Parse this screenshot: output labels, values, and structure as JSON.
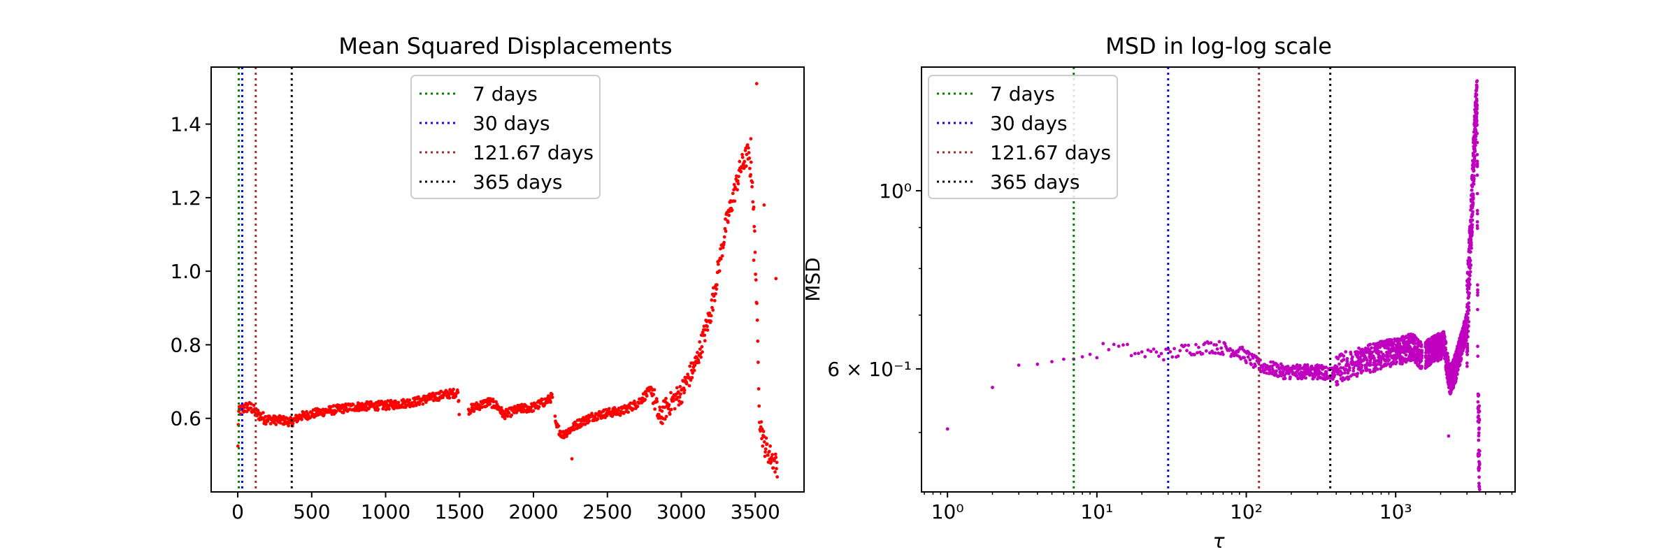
{
  "chart_data": [
    {
      "type": "scatter",
      "title": "Mean Squared Displacements",
      "xlabel": "",
      "ylabel": "",
      "xlim": [
        -180,
        3830
      ],
      "ylim": [
        0.4,
        1.555
      ],
      "x_ticks": [
        0,
        500,
        1000,
        1500,
        2000,
        2500,
        3000,
        3500
      ],
      "x_tick_labels": [
        "0",
        "500",
        "1000",
        "1500",
        "2000",
        "2500",
        "3000",
        "3500"
      ],
      "y_ticks": [
        0.6,
        0.8,
        1.0,
        1.2,
        1.4
      ],
      "y_tick_labels": [
        "0.6",
        "0.8",
        "1.0",
        "1.2",
        "1.4"
      ],
      "grid": false,
      "legend_position": "top-center",
      "series": [
        {
          "color": "#ff0000",
          "marker": "dot",
          "profile": [
            [
              1,
              0.52
            ],
            [
              3,
              0.58
            ],
            [
              7,
              0.615
            ],
            [
              15,
              0.62
            ],
            [
              30,
              0.625
            ],
            [
              60,
              0.63
            ],
            [
              90,
              0.63
            ],
            [
              122,
              0.615
            ],
            [
              180,
              0.6
            ],
            [
              250,
              0.595
            ],
            [
              300,
              0.595
            ],
            [
              365,
              0.59
            ],
            [
              420,
              0.605
            ],
            [
              600,
              0.62
            ],
            [
              800,
              0.632
            ],
            [
              1000,
              0.635
            ],
            [
              1200,
              0.645
            ],
            [
              1300,
              0.655
            ],
            [
              1400,
              0.665
            ],
            [
              1490,
              0.67
            ],
            [
              1500,
              0.61
            ],
            [
              1600,
              0.63
            ],
            [
              1700,
              0.645
            ],
            [
              1750,
              0.635
            ],
            [
              1800,
              0.61
            ],
            [
              1900,
              0.625
            ],
            [
              2000,
              0.63
            ],
            [
              2100,
              0.65
            ],
            [
              2130,
              0.66
            ],
            [
              2150,
              0.58
            ],
            [
              2200,
              0.555
            ],
            [
              2300,
              0.585
            ],
            [
              2400,
              0.605
            ],
            [
              2500,
              0.615
            ],
            [
              2600,
              0.62
            ],
            [
              2700,
              0.64
            ],
            [
              2800,
              0.68
            ],
            [
              2850,
              0.6
            ],
            [
              2900,
              0.63
            ],
            [
              3000,
              0.67
            ],
            [
              3100,
              0.75
            ],
            [
              3200,
              0.89
            ],
            [
              3300,
              1.12
            ],
            [
              3400,
              1.28
            ],
            [
              3450,
              1.32
            ],
            [
              3480,
              1.25
            ],
            [
              3500,
              1.05
            ],
            [
              3530,
              0.6
            ],
            [
              3560,
              0.53
            ],
            [
              3600,
              0.5
            ],
            [
              3650,
              0.47
            ]
          ],
          "notable_points": [
            [
              3510,
              1.51
            ],
            [
              3470,
              1.36
            ],
            [
              3560,
              1.18
            ],
            [
              3490,
              1.03
            ],
            [
              3640,
              0.98
            ],
            [
              2260,
              0.49
            ]
          ]
        }
      ],
      "vlines": [
        {
          "x": 7,
          "color": "#008000"
        },
        {
          "x": 30,
          "color": "#0000ff"
        },
        {
          "x": 121.67,
          "color": "#a52a2a"
        },
        {
          "x": 365,
          "color": "#000000"
        }
      ],
      "legend": [
        "7 days",
        "30 days",
        "121.67 days",
        "365 days"
      ]
    },
    {
      "type": "scatter",
      "title": "MSD in log-log scale",
      "xlabel": "τ",
      "ylabel": "MSD",
      "xscale": "log",
      "yscale": "log",
      "xlim": [
        0.67,
        6300
      ],
      "ylim": [
        0.4217,
        1.4254
      ],
      "x_ticks": [
        1,
        10,
        100,
        1000
      ],
      "x_tick_labels": [
        "10⁰",
        "10¹",
        "10²",
        "10³"
      ],
      "y_ticks": [
        0.6,
        1.0
      ],
      "y_tick_labels": [
        "6 × 10⁻¹",
        "10⁰"
      ],
      "grid": false,
      "legend_position": "top-left",
      "series": [
        {
          "color": "#bf00bf",
          "marker": "dot",
          "profile": [
            [
              1,
              0.505
            ],
            [
              1.5,
              0.57
            ],
            [
              2,
              0.57
            ],
            [
              3,
              0.605
            ],
            [
              4,
              0.61
            ],
            [
              5,
              0.612
            ],
            [
              7,
              0.618
            ],
            [
              9,
              0.625
            ],
            [
              12,
              0.64
            ],
            [
              15,
              0.635
            ],
            [
              20,
              0.625
            ],
            [
              25,
              0.63
            ],
            [
              30,
              0.625
            ],
            [
              40,
              0.635
            ],
            [
              60,
              0.64
            ],
            [
              90,
              0.63
            ],
            [
              122,
              0.605
            ],
            [
              180,
              0.595
            ],
            [
              250,
              0.595
            ],
            [
              300,
              0.595
            ],
            [
              365,
              0.592
            ],
            [
              450,
              0.605
            ],
            [
              600,
              0.615
            ],
            [
              800,
              0.625
            ],
            [
              1000,
              0.63
            ],
            [
              1300,
              0.64
            ],
            [
              1500,
              0.62
            ],
            [
              1800,
              0.635
            ],
            [
              2100,
              0.645
            ],
            [
              2300,
              0.58
            ],
            [
              2500,
              0.6
            ],
            [
              2800,
              0.65
            ],
            [
              3000,
              0.68
            ],
            [
              3200,
              0.9
            ],
            [
              3400,
              1.2
            ],
            [
              3500,
              1.3
            ],
            [
              3550,
              0.55
            ],
            [
              3600,
              0.46
            ]
          ],
          "notable_points": [
            [
              3510,
              1.37
            ],
            [
              3450,
              1.27
            ],
            [
              2260,
              0.495
            ],
            [
              3620,
              0.44
            ]
          ]
        }
      ],
      "vlines": [
        {
          "x": 7,
          "color": "#008000"
        },
        {
          "x": 30,
          "color": "#0000ff"
        },
        {
          "x": 121.67,
          "color": "#a52a2a"
        },
        {
          "x": 365,
          "color": "#000000"
        }
      ],
      "legend": [
        "7 days",
        "30 days",
        "121.67 days",
        "365 days"
      ]
    }
  ]
}
